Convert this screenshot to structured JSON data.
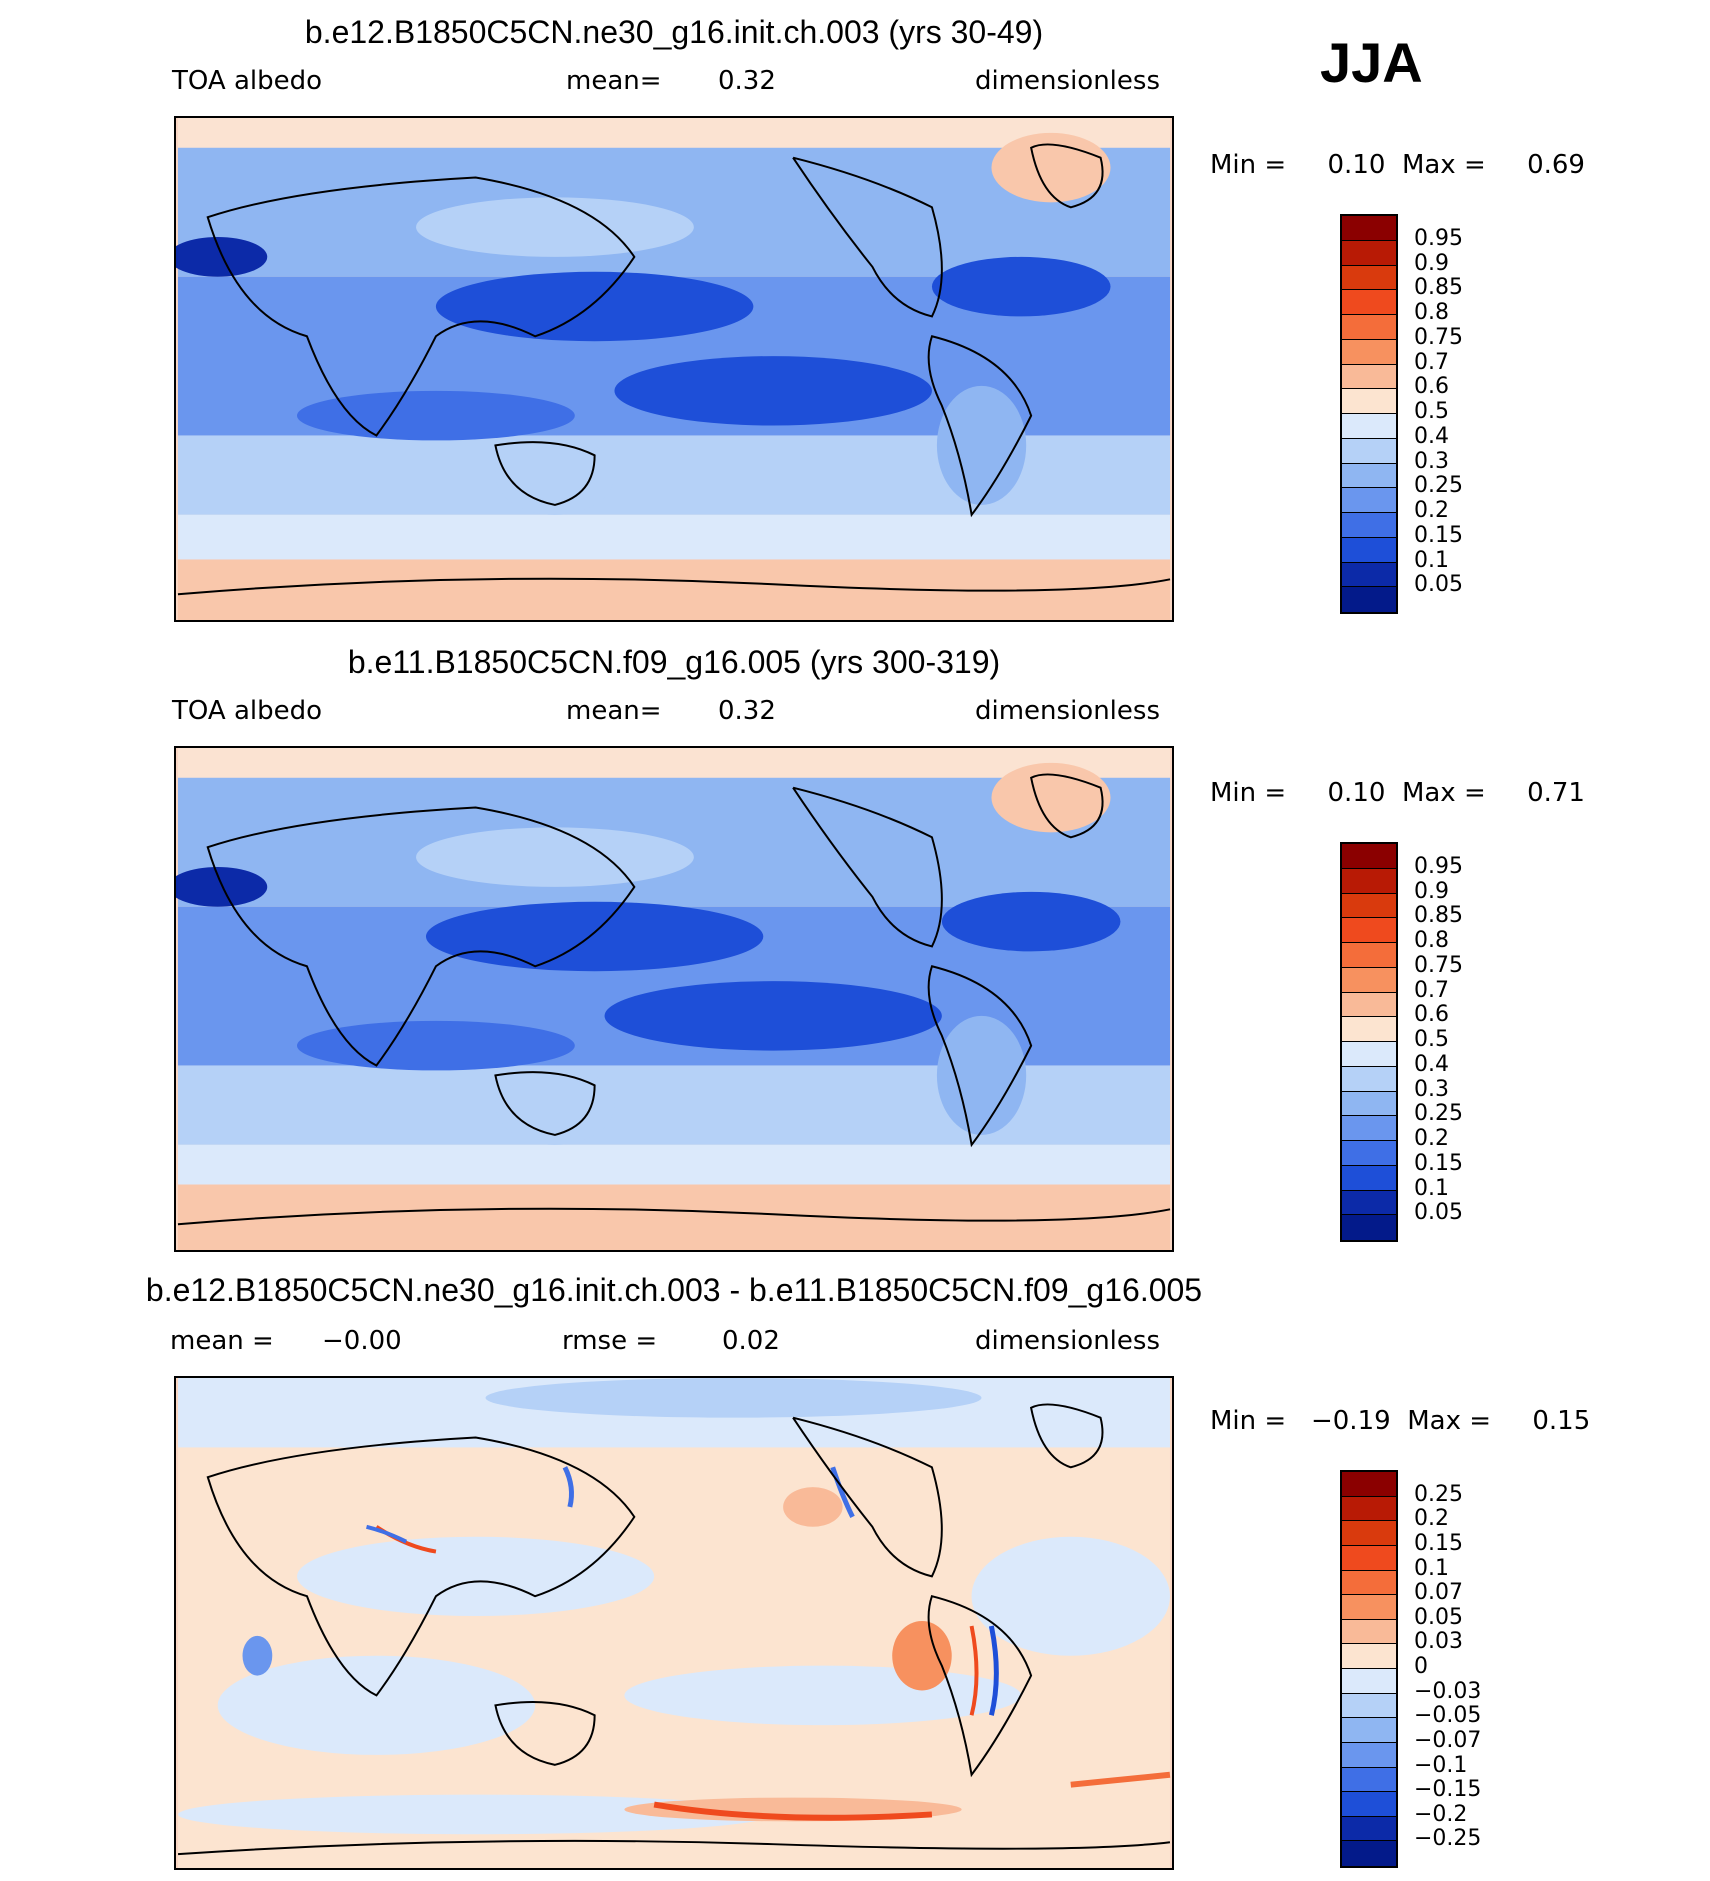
{
  "season": "JJA",
  "panels": [
    {
      "title": "b.e12.B1850C5CN.ne30_g16.init.ch.003 (yrs 30-49)",
      "left_label": "TOA albedo",
      "center_label": "mean=",
      "center_value": "0.32",
      "right_label": "dimensionless",
      "min_label": "Min =",
      "min_value": "0.10",
      "max_label": "Max =",
      "max_value": "0.69",
      "legend": {
        "labels": [
          "0.95",
          "0.9",
          "0.85",
          "0.8",
          "0.75",
          "0.7",
          "0.6",
          "0.5",
          "0.4",
          "0.3",
          "0.25",
          "0.2",
          "0.15",
          "0.1",
          "0.05"
        ],
        "colors": [
          "#8b0000",
          "#b81a05",
          "#d93a0d",
          "#ef4a1e",
          "#f46d3a",
          "#f7915f",
          "#f9ba98",
          "#fce4d0",
          "#dbe9fb",
          "#b5d1f7",
          "#8fb6f2",
          "#6a96ee",
          "#3f6fe6",
          "#1e4fd8",
          "#0c2aa8",
          "#031a8a"
        ]
      }
    },
    {
      "title": "b.e11.B1850C5CN.f09_g16.005 (yrs 300-319)",
      "left_label": "TOA albedo",
      "center_label": "mean=",
      "center_value": "0.32",
      "right_label": "dimensionless",
      "min_label": "Min =",
      "min_value": "0.10",
      "max_label": "Max =",
      "max_value": "0.71",
      "legend": {
        "labels": [
          "0.95",
          "0.9",
          "0.85",
          "0.8",
          "0.75",
          "0.7",
          "0.6",
          "0.5",
          "0.4",
          "0.3",
          "0.25",
          "0.2",
          "0.15",
          "0.1",
          "0.05"
        ],
        "colors": [
          "#8b0000",
          "#b81a05",
          "#d93a0d",
          "#ef4a1e",
          "#f46d3a",
          "#f7915f",
          "#f9ba98",
          "#fce4d0",
          "#dbe9fb",
          "#b5d1f7",
          "#8fb6f2",
          "#6a96ee",
          "#3f6fe6",
          "#1e4fd8",
          "#0c2aa8",
          "#031a8a"
        ]
      }
    },
    {
      "title": "b.e12.B1850C5CN.ne30_g16.init.ch.003 - b.e11.B1850C5CN.f09_g16.005",
      "left_label": "mean =",
      "left_value": "−0.00",
      "center_label": "rmse =",
      "center_value": "0.02",
      "right_label": "dimensionless",
      "min_label": "Min =",
      "min_value": "−0.19",
      "max_label": "Max =",
      "max_value": "0.15",
      "legend": {
        "labels": [
          "0.25",
          "0.2",
          "0.15",
          "0.1",
          "0.07",
          "0.05",
          "0.03",
          "0",
          "−0.03",
          "−0.05",
          "−0.07",
          "−0.1",
          "−0.15",
          "−0.2",
          "−0.25"
        ],
        "colors": [
          "#8b0000",
          "#b81a05",
          "#d93a0d",
          "#ef4a1e",
          "#f46d3a",
          "#f7915f",
          "#f9ba98",
          "#fce4d0",
          "#dbe9fb",
          "#b5d1f7",
          "#8fb6f2",
          "#6a96ee",
          "#3f6fe6",
          "#1e4fd8",
          "#0c2aa8",
          "#031a8a"
        ]
      }
    }
  ]
}
